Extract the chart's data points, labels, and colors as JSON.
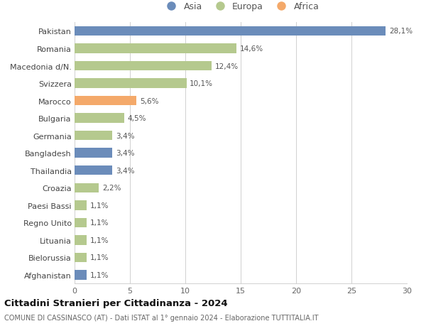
{
  "categories": [
    "Pakistan",
    "Romania",
    "Macedonia d/N.",
    "Svizzera",
    "Marocco",
    "Bulgaria",
    "Germania",
    "Bangladesh",
    "Thailandia",
    "Croazia",
    "Paesi Bassi",
    "Regno Unito",
    "Lituania",
    "Bielorussia",
    "Afghanistan"
  ],
  "values": [
    28.1,
    14.6,
    12.4,
    10.1,
    5.6,
    4.5,
    3.4,
    3.4,
    3.4,
    2.2,
    1.1,
    1.1,
    1.1,
    1.1,
    1.1
  ],
  "labels": [
    "28,1%",
    "14,6%",
    "12,4%",
    "10,1%",
    "5,6%",
    "4,5%",
    "3,4%",
    "3,4%",
    "3,4%",
    "2,2%",
    "1,1%",
    "1,1%",
    "1,1%",
    "1,1%",
    "1,1%"
  ],
  "colors": [
    "#6b8cba",
    "#b5c98e",
    "#b5c98e",
    "#b5c98e",
    "#f4a96a",
    "#b5c98e",
    "#b5c98e",
    "#6b8cba",
    "#6b8cba",
    "#b5c98e",
    "#b5c98e",
    "#b5c98e",
    "#b5c98e",
    "#b5c98e",
    "#6b8cba"
  ],
  "legend_labels": [
    "Asia",
    "Europa",
    "Africa"
  ],
  "legend_colors": [
    "#6b8cba",
    "#b5c98e",
    "#f4a96a"
  ],
  "title": "Cittadini Stranieri per Cittadinanza - 2024",
  "subtitle": "COMUNE DI CASSINASCO (AT) - Dati ISTAT al 1° gennaio 2024 - Elaborazione TUTTITALIA.IT",
  "xlim": [
    0,
    30
  ],
  "xticks": [
    0,
    5,
    10,
    15,
    20,
    25,
    30
  ],
  "bg_color": "#ffffff",
  "bar_height": 0.55,
  "grid_color": "#d0d0d0"
}
